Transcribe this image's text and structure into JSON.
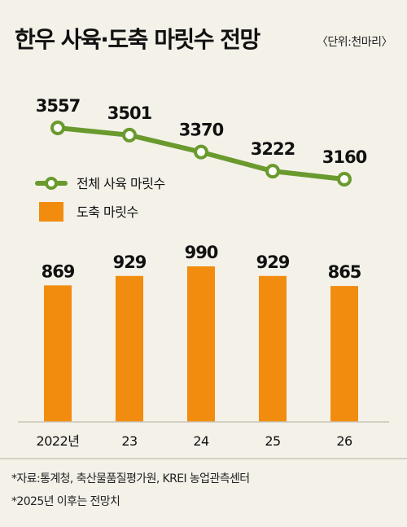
{
  "header": {
    "title": "한우 사육·도축 마릿수 전망",
    "unit": "〈단위:천마리〉"
  },
  "legend": {
    "line_label": "전체 사육 마릿수",
    "bar_label": "도축 마릿수"
  },
  "notes": {
    "source": "*자료:통계청, 축산물품질평가원, KREI 농업관측센터",
    "forecast": "*2025년 이후는 전망치"
  },
  "colors": {
    "line": "#6a9a2e",
    "bar": "#f28c0f",
    "background": "#f4f1e9",
    "grid": "#c9c5bb"
  },
  "chart_data": {
    "type": "bar+line",
    "categories": [
      "2022년",
      "23",
      "24",
      "25",
      "26"
    ],
    "series": [
      {
        "name": "전체 사육 마릿수",
        "type": "line",
        "values": [
          3557,
          3501,
          3370,
          3222,
          3160
        ]
      },
      {
        "name": "도축 마릿수",
        "type": "bar",
        "values": [
          869,
          929,
          990,
          929,
          865
        ]
      }
    ],
    "title": "한우 사육·도축 마릿수 전망",
    "unit": "천마리",
    "grid": false,
    "legend_position": "middle-left"
  }
}
